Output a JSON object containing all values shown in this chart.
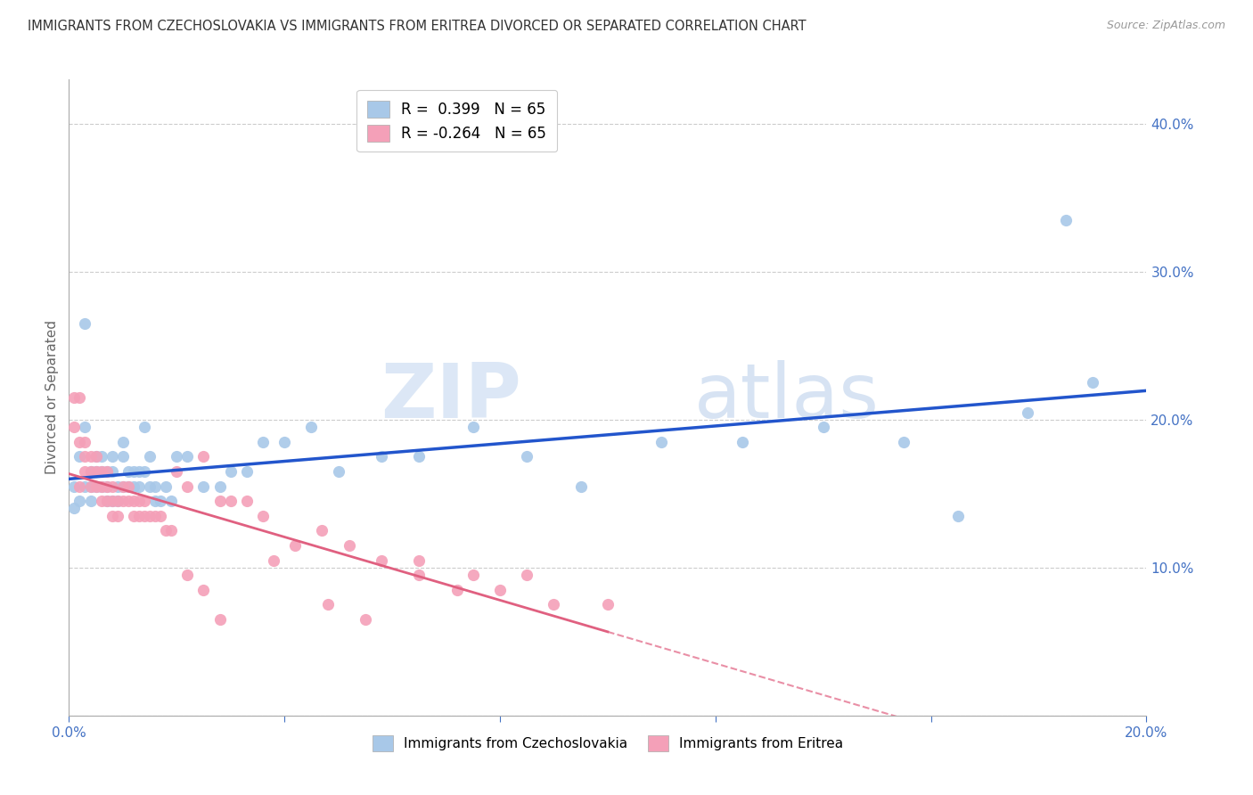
{
  "title": "IMMIGRANTS FROM CZECHOSLOVAKIA VS IMMIGRANTS FROM ERITREA DIVORCED OR SEPARATED CORRELATION CHART",
  "source": "Source: ZipAtlas.com",
  "ylabel": "Divorced or Separated",
  "xmin": 0.0,
  "xmax": 0.2,
  "ymin": 0.0,
  "ymax": 0.43,
  "color_blue": "#a8c8e8",
  "color_pink": "#f4a0b8",
  "line_blue": "#2255cc",
  "line_pink": "#e06080",
  "R_blue": 0.399,
  "N_blue": 65,
  "R_pink": -0.264,
  "N_pink": 65,
  "legend_label_blue": "Immigrants from Czechoslovakia",
  "legend_label_pink": "Immigrants from Eritrea",
  "watermark_zip": "ZIP",
  "watermark_atlas": "atlas",
  "axis_color": "#4472c4",
  "blue_scatter_x": [
    0.001,
    0.001,
    0.002,
    0.002,
    0.003,
    0.003,
    0.003,
    0.004,
    0.004,
    0.004,
    0.005,
    0.005,
    0.005,
    0.006,
    0.006,
    0.006,
    0.007,
    0.007,
    0.007,
    0.008,
    0.008,
    0.008,
    0.009,
    0.009,
    0.01,
    0.01,
    0.01,
    0.011,
    0.011,
    0.012,
    0.012,
    0.013,
    0.013,
    0.014,
    0.014,
    0.015,
    0.015,
    0.016,
    0.016,
    0.017,
    0.018,
    0.019,
    0.02,
    0.022,
    0.025,
    0.028,
    0.03,
    0.033,
    0.036,
    0.04,
    0.045,
    0.05,
    0.058,
    0.065,
    0.075,
    0.085,
    0.095,
    0.11,
    0.125,
    0.14,
    0.155,
    0.165,
    0.178,
    0.19,
    0.185
  ],
  "blue_scatter_y": [
    0.155,
    0.14,
    0.175,
    0.145,
    0.265,
    0.195,
    0.155,
    0.165,
    0.155,
    0.145,
    0.175,
    0.165,
    0.155,
    0.175,
    0.165,
    0.155,
    0.165,
    0.155,
    0.145,
    0.175,
    0.165,
    0.145,
    0.145,
    0.155,
    0.185,
    0.175,
    0.155,
    0.165,
    0.155,
    0.165,
    0.155,
    0.165,
    0.155,
    0.195,
    0.165,
    0.175,
    0.155,
    0.155,
    0.145,
    0.145,
    0.155,
    0.145,
    0.175,
    0.175,
    0.155,
    0.155,
    0.165,
    0.165,
    0.185,
    0.185,
    0.195,
    0.165,
    0.175,
    0.175,
    0.195,
    0.175,
    0.155,
    0.185,
    0.185,
    0.195,
    0.185,
    0.135,
    0.205,
    0.225,
    0.335
  ],
  "pink_scatter_x": [
    0.001,
    0.001,
    0.002,
    0.002,
    0.002,
    0.003,
    0.003,
    0.003,
    0.004,
    0.004,
    0.004,
    0.005,
    0.005,
    0.005,
    0.006,
    0.006,
    0.006,
    0.007,
    0.007,
    0.007,
    0.008,
    0.008,
    0.008,
    0.009,
    0.009,
    0.01,
    0.01,
    0.011,
    0.011,
    0.012,
    0.012,
    0.013,
    0.013,
    0.014,
    0.014,
    0.015,
    0.016,
    0.017,
    0.018,
    0.019,
    0.02,
    0.022,
    0.025,
    0.028,
    0.03,
    0.033,
    0.036,
    0.038,
    0.042,
    0.047,
    0.052,
    0.058,
    0.065,
    0.075,
    0.085,
    0.065,
    0.072,
    0.08,
    0.09,
    0.1,
    0.022,
    0.025,
    0.028,
    0.048,
    0.055
  ],
  "pink_scatter_y": [
    0.215,
    0.195,
    0.215,
    0.185,
    0.155,
    0.185,
    0.175,
    0.165,
    0.175,
    0.165,
    0.155,
    0.175,
    0.165,
    0.155,
    0.165,
    0.155,
    0.145,
    0.165,
    0.155,
    0.145,
    0.155,
    0.145,
    0.135,
    0.145,
    0.135,
    0.155,
    0.145,
    0.155,
    0.145,
    0.145,
    0.135,
    0.145,
    0.135,
    0.145,
    0.135,
    0.135,
    0.135,
    0.135,
    0.125,
    0.125,
    0.165,
    0.155,
    0.175,
    0.145,
    0.145,
    0.145,
    0.135,
    0.105,
    0.115,
    0.125,
    0.115,
    0.105,
    0.105,
    0.095,
    0.095,
    0.095,
    0.085,
    0.085,
    0.075,
    0.075,
    0.095,
    0.085,
    0.065,
    0.075,
    0.065
  ]
}
